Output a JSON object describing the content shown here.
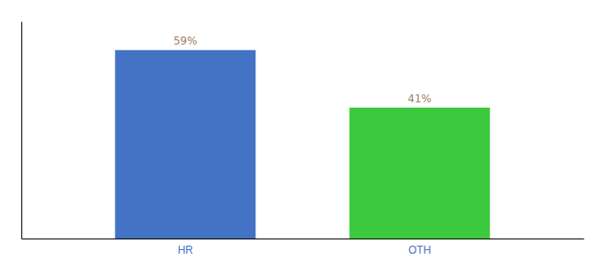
{
  "chart_data": {
    "type": "bar",
    "categories": [
      "HR",
      "OTH"
    ],
    "values": [
      59,
      41
    ],
    "value_labels": [
      "59%",
      "41%"
    ],
    "colors": [
      "#4472c4",
      "#3dc93d"
    ],
    "ylim": [
      0,
      68
    ],
    "data_labels": true,
    "tick_labels": "x"
  }
}
